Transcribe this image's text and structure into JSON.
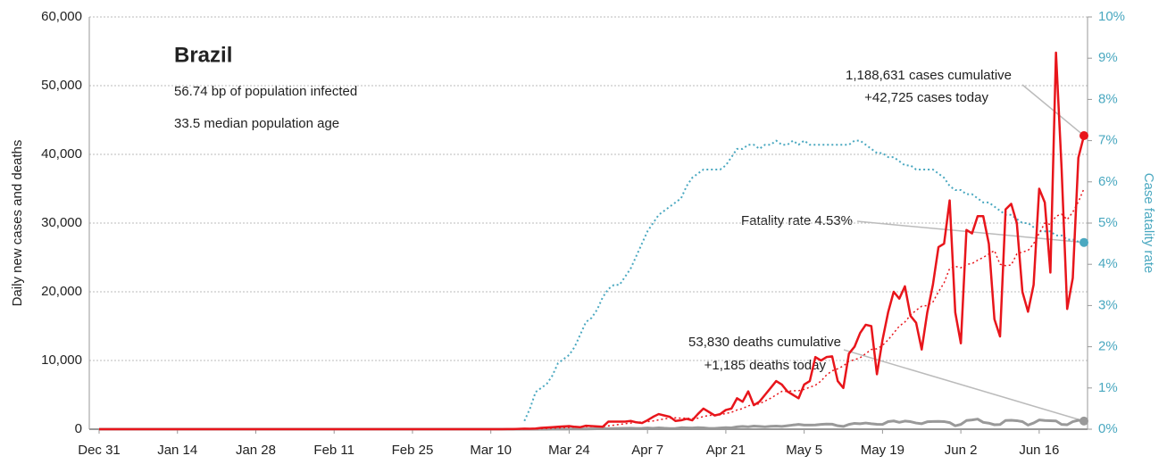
{
  "chart_data": {
    "type": "line",
    "ylabel": "Daily new cases and deaths",
    "y2label": "Case fatality rate",
    "annotations": [
      "Brazil",
      "56.74 bp of population infected",
      "33.5 median population age",
      "1,188,631 cases cumulative",
      "+42,725 cases today",
      "Fatality rate 4.53%",
      "53,830 deaths cumulative",
      "+1,185 deaths today"
    ],
    "categories": [
      "Dec 31",
      null,
      null,
      null,
      null,
      null,
      null,
      null,
      null,
      null,
      null,
      null,
      null,
      null,
      "Jan 14",
      null,
      null,
      null,
      null,
      null,
      null,
      null,
      null,
      null,
      null,
      null,
      null,
      null,
      "Jan 28",
      null,
      null,
      null,
      null,
      null,
      null,
      null,
      null,
      null,
      null,
      null,
      null,
      null,
      "Feb 11",
      null,
      null,
      null,
      null,
      null,
      null,
      null,
      null,
      null,
      null,
      null,
      null,
      null,
      "Feb 25",
      null,
      null,
      null,
      null,
      null,
      null,
      null,
      null,
      null,
      null,
      null,
      null,
      null,
      "Mar 10",
      null,
      null,
      null,
      null,
      null,
      null,
      null,
      null,
      null,
      null,
      null,
      null,
      null,
      "Mar 24",
      null,
      null,
      null,
      null,
      null,
      null,
      null,
      null,
      null,
      null,
      null,
      null,
      null,
      "Apr 7",
      null,
      null,
      null,
      null,
      null,
      null,
      null,
      null,
      null,
      null,
      null,
      null,
      null,
      "Apr 21",
      null,
      null,
      null,
      null,
      null,
      null,
      null,
      null,
      null,
      null,
      null,
      null,
      null,
      "May 5",
      null,
      null,
      null,
      null,
      null,
      null,
      null,
      null,
      null,
      null,
      null,
      null,
      null,
      "May 19",
      null,
      null,
      null,
      null,
      null,
      null,
      null,
      null,
      null,
      null,
      null,
      null,
      null,
      "Jun 2",
      null,
      null,
      null,
      null,
      null,
      null,
      null,
      null,
      null,
      null,
      null,
      null,
      null,
      "Jun 16",
      null,
      null,
      null,
      null,
      null,
      null,
      null,
      null
    ],
    "series": [
      {
        "color": "#4aa8c0",
        "dash": true,
        "axis": "y2",
        "width": 2,
        "values": [
          null,
          null,
          null,
          null,
          null,
          null,
          null,
          null,
          null,
          null,
          null,
          null,
          null,
          null,
          null,
          null,
          null,
          null,
          null,
          null,
          null,
          null,
          null,
          null,
          null,
          null,
          null,
          null,
          null,
          null,
          null,
          null,
          null,
          null,
          null,
          null,
          null,
          null,
          null,
          null,
          null,
          null,
          null,
          null,
          null,
          null,
          null,
          null,
          null,
          null,
          null,
          null,
          null,
          null,
          null,
          null,
          null,
          null,
          null,
          null,
          null,
          null,
          null,
          null,
          null,
          null,
          null,
          null,
          null,
          null,
          null,
          null,
          null,
          null,
          null,
          null,
          0.2,
          0.5,
          0.9,
          1.0,
          1.1,
          1.3,
          1.6,
          1.7,
          1.8,
          2.0,
          2.3,
          2.6,
          2.7,
          2.9,
          3.2,
          3.4,
          3.5,
          3.5,
          3.7,
          3.9,
          4.2,
          4.5,
          4.8,
          5.0,
          5.2,
          5.3,
          5.4,
          5.5,
          5.6,
          5.9,
          6.1,
          6.2,
          6.3,
          6.3,
          6.3,
          6.3,
          6.4,
          6.6,
          6.8,
          6.8,
          6.9,
          6.9,
          6.8,
          6.9,
          6.9,
          7.0,
          6.9,
          6.9,
          7.0,
          6.9,
          7.0,
          6.9,
          6.9,
          6.9,
          6.9,
          6.9,
          6.9,
          6.9,
          6.9,
          7.0,
          7.0,
          6.9,
          6.8,
          6.7,
          6.7,
          6.6,
          6.6,
          6.5,
          6.4,
          6.4,
          6.3,
          6.3,
          6.3,
          6.3,
          6.2,
          6.1,
          5.9,
          5.8,
          5.8,
          5.7,
          5.7,
          5.6,
          5.5,
          5.5,
          5.4,
          5.3,
          5.2,
          5.2,
          5.1,
          5.0,
          5.0,
          4.9,
          4.8,
          4.8,
          4.8,
          4.7,
          4.7,
          4.6,
          4.6,
          4.55,
          4.53
        ]
      },
      {
        "color": "#999999",
        "dash": false,
        "width": 3,
        "values": [
          0,
          0,
          0,
          0,
          0,
          0,
          0,
          0,
          0,
          0,
          0,
          0,
          0,
          0,
          0,
          0,
          0,
          0,
          0,
          0,
          0,
          0,
          0,
          0,
          0,
          0,
          0,
          0,
          0,
          0,
          0,
          0,
          0,
          0,
          0,
          0,
          0,
          0,
          0,
          0,
          0,
          0,
          0,
          0,
          0,
          0,
          0,
          0,
          0,
          0,
          0,
          0,
          0,
          0,
          0,
          0,
          0,
          0,
          0,
          0,
          0,
          0,
          0,
          0,
          0,
          0,
          0,
          0,
          0,
          0,
          0,
          0,
          0,
          0,
          0,
          0,
          0,
          1,
          2,
          3,
          7,
          10,
          15,
          20,
          25,
          30,
          40,
          30,
          50,
          60,
          70,
          80,
          100,
          120,
          130,
          140,
          120,
          130,
          180,
          130,
          200,
          140,
          100,
          120,
          220,
          200,
          180,
          220,
          190,
          120,
          110,
          180,
          220,
          200,
          340,
          400,
          350,
          450,
          400,
          350,
          420,
          450,
          400,
          500,
          610,
          700,
          600,
          600,
          620,
          700,
          750,
          730,
          500,
          400,
          700,
          850,
          800,
          900,
          800,
          720,
          700,
          1100,
          1200,
          1000,
          1180,
          1100,
          900,
          800,
          1080,
          1120,
          1130,
          1110,
          960,
          500,
          700,
          1260,
          1350,
          1470,
          1000,
          880,
          650,
          680,
          1270,
          1300,
          1240,
          1100,
          600,
          900,
          1340,
          1260,
          1230,
          1200,
          700,
          650,
          1100,
          1300,
          1185
        ]
      },
      {
        "color": "#e8151b",
        "dash": true,
        "width": 1.5,
        "values": [
          0,
          0,
          0,
          0,
          0,
          0,
          0,
          0,
          0,
          0,
          0,
          0,
          0,
          0,
          0,
          0,
          0,
          0,
          0,
          0,
          0,
          0,
          0,
          0,
          0,
          0,
          0,
          0,
          0,
          0,
          0,
          0,
          0,
          0,
          0,
          0,
          0,
          0,
          0,
          0,
          0,
          0,
          0,
          0,
          0,
          0,
          0,
          0,
          0,
          0,
          0,
          0,
          0,
          0,
          0,
          0,
          0,
          0,
          0,
          0,
          0,
          0,
          0,
          0,
          0,
          0,
          0,
          0,
          0,
          0,
          0,
          0,
          0,
          5,
          10,
          15,
          25,
          35,
          50,
          80,
          110,
          150,
          190,
          240,
          270,
          300,
          330,
          370,
          390,
          400,
          380,
          480,
          590,
          700,
          800,
          900,
          1000,
          1050,
          1100,
          1200,
          1350,
          1500,
          1600,
          1650,
          1600,
          1600,
          1550,
          1600,
          1850,
          2000,
          2050,
          2100,
          2300,
          2450,
          2800,
          3000,
          3400,
          3600,
          3700,
          4100,
          4500,
          5000,
          5500,
          5500,
          5600,
          5600,
          5800,
          6100,
          6400,
          7000,
          7900,
          8500,
          8800,
          9200,
          9900,
          10100,
          10400,
          11000,
          11600,
          11700,
          12200,
          13000,
          14000,
          15000,
          15600,
          16600,
          17300,
          17900,
          18000,
          18500,
          20000,
          21300,
          23400,
          23700,
          23500,
          24000,
          24100,
          24600,
          25000,
          25500,
          26000,
          24000,
          23800,
          23900,
          25500,
          25800,
          26000,
          27000,
          28500,
          30000,
          29800,
          31000,
          31300,
          30500,
          31600,
          33100,
          35000
        ]
      },
      {
        "color": "#e8151b",
        "dash": false,
        "width": 2.5,
        "values": [
          0,
          0,
          0,
          0,
          0,
          0,
          0,
          0,
          0,
          0,
          0,
          0,
          0,
          0,
          0,
          0,
          0,
          0,
          0,
          0,
          0,
          0,
          0,
          0,
          0,
          0,
          0,
          0,
          0,
          0,
          0,
          0,
          0,
          0,
          0,
          0,
          0,
          0,
          0,
          0,
          0,
          0,
          0,
          0,
          0,
          0,
          0,
          0,
          0,
          0,
          0,
          0,
          0,
          0,
          0,
          0,
          0,
          0,
          0,
          0,
          0,
          0,
          0,
          0,
          0,
          0,
          0,
          0,
          0,
          0,
          0,
          0,
          5,
          10,
          20,
          50,
          80,
          70,
          100,
          200,
          250,
          300,
          350,
          400,
          450,
          350,
          300,
          500,
          450,
          400,
          350,
          1100,
          1100,
          1100,
          1100,
          1200,
          1000,
          900,
          1300,
          1800,
          2200,
          2000,
          1800,
          1200,
          1300,
          1500,
          1300,
          2200,
          3000,
          2500,
          2000,
          2200,
          2800,
          3000,
          4500,
          4000,
          5500,
          3500,
          4000,
          5000,
          6000,
          7000,
          6500,
          5500,
          5000,
          4500,
          6500,
          7000,
          10500,
          10000,
          10500,
          10600,
          7000,
          6000,
          11000,
          12000,
          14000,
          15200,
          15000,
          8000,
          13000,
          17000,
          20000,
          19000,
          20800,
          16500,
          15500,
          11600,
          17000,
          21000,
          26500,
          27000,
          33300,
          17000,
          12500,
          29000,
          28500,
          31000,
          31000,
          27000,
          16000,
          13500,
          32000,
          32800,
          30000,
          20000,
          17100,
          21000,
          35000,
          33000,
          22800,
          54800,
          38000,
          17500,
          22000,
          39500,
          42725
        ]
      }
    ],
    "ylim": [
      0,
      60000
    ],
    "yticks": [
      0,
      {
        "value": 10000,
        "label": "10,000"
      },
      {
        "value": 20000,
        "label": "20,000"
      },
      {
        "value": 30000,
        "label": "30,000"
      },
      {
        "value": 40000,
        "label": "40,000"
      },
      {
        "value": 50000,
        "label": "50,000"
      },
      {
        "value": 60000,
        "label": "60,000"
      }
    ],
    "y2lim": [
      0,
      10
    ],
    "y2ticks": [
      {
        "value": 0,
        "label": "0%"
      },
      {
        "value": 1,
        "label": "1%"
      },
      {
        "value": 2,
        "label": "2%"
      },
      {
        "value": 3,
        "label": "3%"
      },
      {
        "value": 4,
        "label": "4%"
      },
      {
        "value": 5,
        "label": "5%"
      },
      {
        "value": 6,
        "label": "6%"
      },
      {
        "value": 7,
        "label": "7%"
      },
      {
        "value": 8,
        "label": "8%"
      },
      {
        "value": 9,
        "label": "9%"
      },
      {
        "value": 10,
        "label": "10%"
      }
    ],
    "y2color": "#4aa8c0",
    "grid": true
  }
}
